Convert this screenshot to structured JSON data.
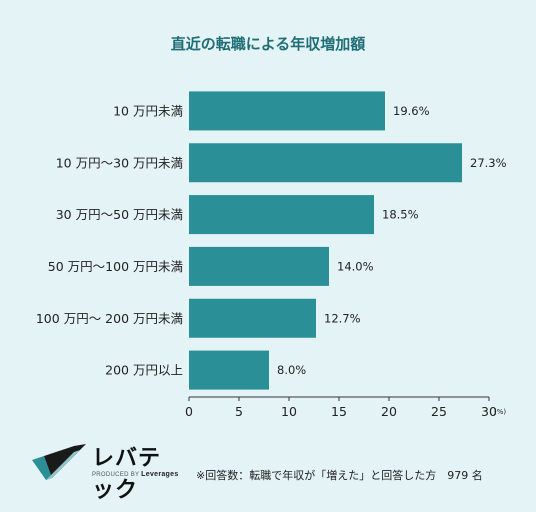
{
  "chart_data": {
    "type": "bar",
    "orientation": "horizontal",
    "title": "直近の転職による年収増加額",
    "categories": [
      "10 万円未満",
      "10 万円〜30 万円未満",
      "30 万円〜50 万円未満",
      "50 万円〜100 万円未満",
      "100 万円〜 200 万円未満",
      "200 万円以上"
    ],
    "values": [
      19.6,
      27.3,
      18.5,
      14.0,
      12.7,
      8.0
    ],
    "value_labels": [
      "19.6%",
      "27.3%",
      "18.5%",
      "14.0%",
      "12.7%",
      "8.0%"
    ],
    "xlim": [
      0,
      30
    ],
    "xticks": [
      "0",
      "5",
      "10",
      "15",
      "20",
      "25",
      "30"
    ],
    "x_unit": "(%)",
    "bar_color": "#2a8f96",
    "grid": false
  },
  "logo": {
    "text": "レバテック",
    "sub_prefix": "PRODUCED BY",
    "sub_brand": "Leverages",
    "colors": [
      "#2a8f96",
      "#1a1a1a"
    ]
  },
  "note": "※回答数：転職で年収が「増えた」と回答した方　979 名"
}
